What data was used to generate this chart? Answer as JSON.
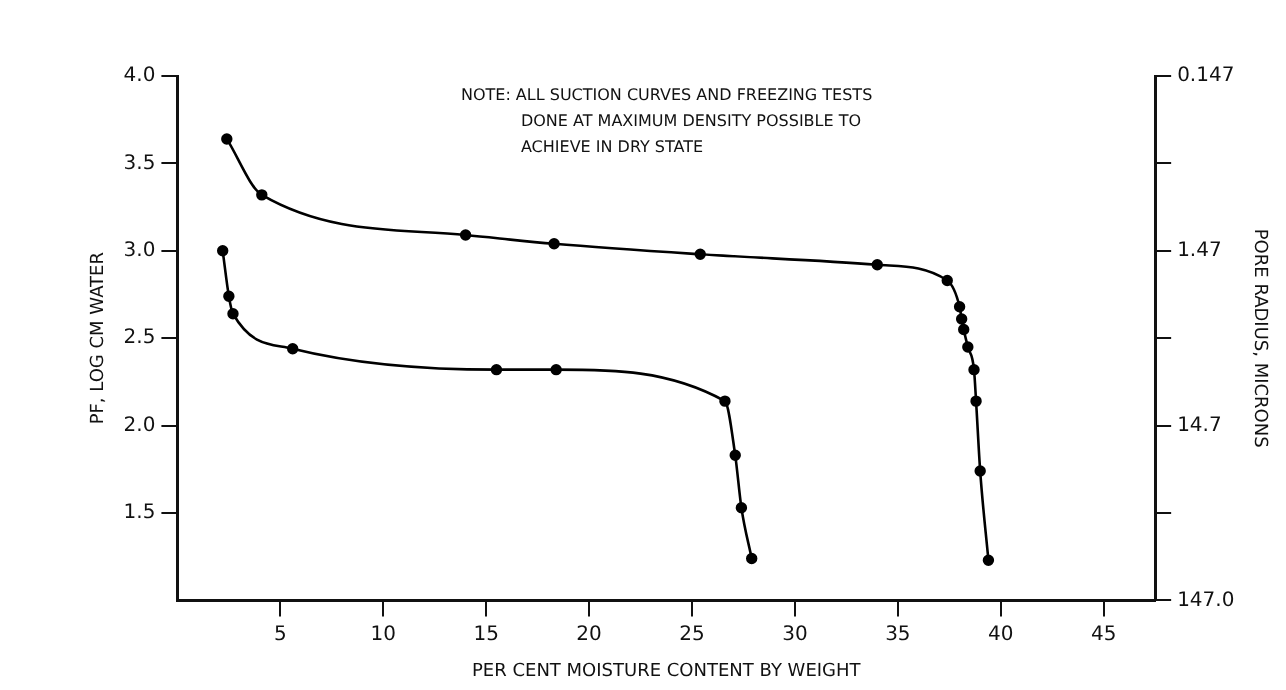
{
  "chart_data": {
    "type": "line",
    "xlabel": "PER CENT MOISTURE CONTENT BY WEIGHT",
    "ylabel": "PF, LOG CM WATER",
    "y2label": "PORE RADIUS, MICRONS",
    "annotations": [
      "NOTE: ALL SUCTION CURVES AND FREEZING TESTS\nDONE AT MAXIMUM DENSITY POSSIBLE TO\nACHIEVE IN DRY STATE"
    ],
    "xlim": [
      0,
      47.5
    ],
    "xticks": [
      5,
      10,
      15,
      20,
      25,
      30,
      35,
      40,
      45
    ],
    "ylim": [
      1,
      4
    ],
    "yticks": [
      1.5,
      {
        "value": 2,
        "label": "2.0"
      },
      2.5,
      {
        "value": 3,
        "label": "3.0"
      },
      3.5,
      {
        "value": 4,
        "label": "4.0"
      }
    ],
    "log": "y2",
    "y2lim": [
      147,
      0.147
    ],
    "y2ticks": [
      {
        "value": 147,
        "label": "147.0"
      },
      {
        "value": 46.5,
        "label": null
      },
      14.7,
      {
        "value": 4.65,
        "label": null
      },
      1.47,
      {
        "value": 0.465,
        "label": null
      },
      0.147
    ],
    "grid": false,
    "legend": false,
    "marker": "circle",
    "line_style": "solid",
    "series": [
      {
        "color": "#000000",
        "x": [
          2.4,
          4.1,
          14.0,
          18.3,
          25.4,
          34.0,
          37.4,
          38.0,
          38.1,
          38.2,
          38.4,
          38.7,
          38.8,
          39.0,
          39.4
        ],
        "values": [
          3.64,
          3.32,
          3.09,
          3.04,
          2.98,
          2.92,
          2.83,
          2.68,
          2.61,
          2.55,
          2.45,
          2.32,
          2.14,
          1.74,
          1.23
        ]
      },
      {
        "color": "#000000",
        "x": [
          2.2,
          2.5,
          2.7,
          5.6,
          15.5,
          18.4,
          26.6,
          27.1,
          27.4,
          27.9
        ],
        "values": [
          3.0,
          2.74,
          2.64,
          2.44,
          2.32,
          2.32,
          2.14,
          1.83,
          1.53,
          1.24
        ]
      }
    ]
  }
}
